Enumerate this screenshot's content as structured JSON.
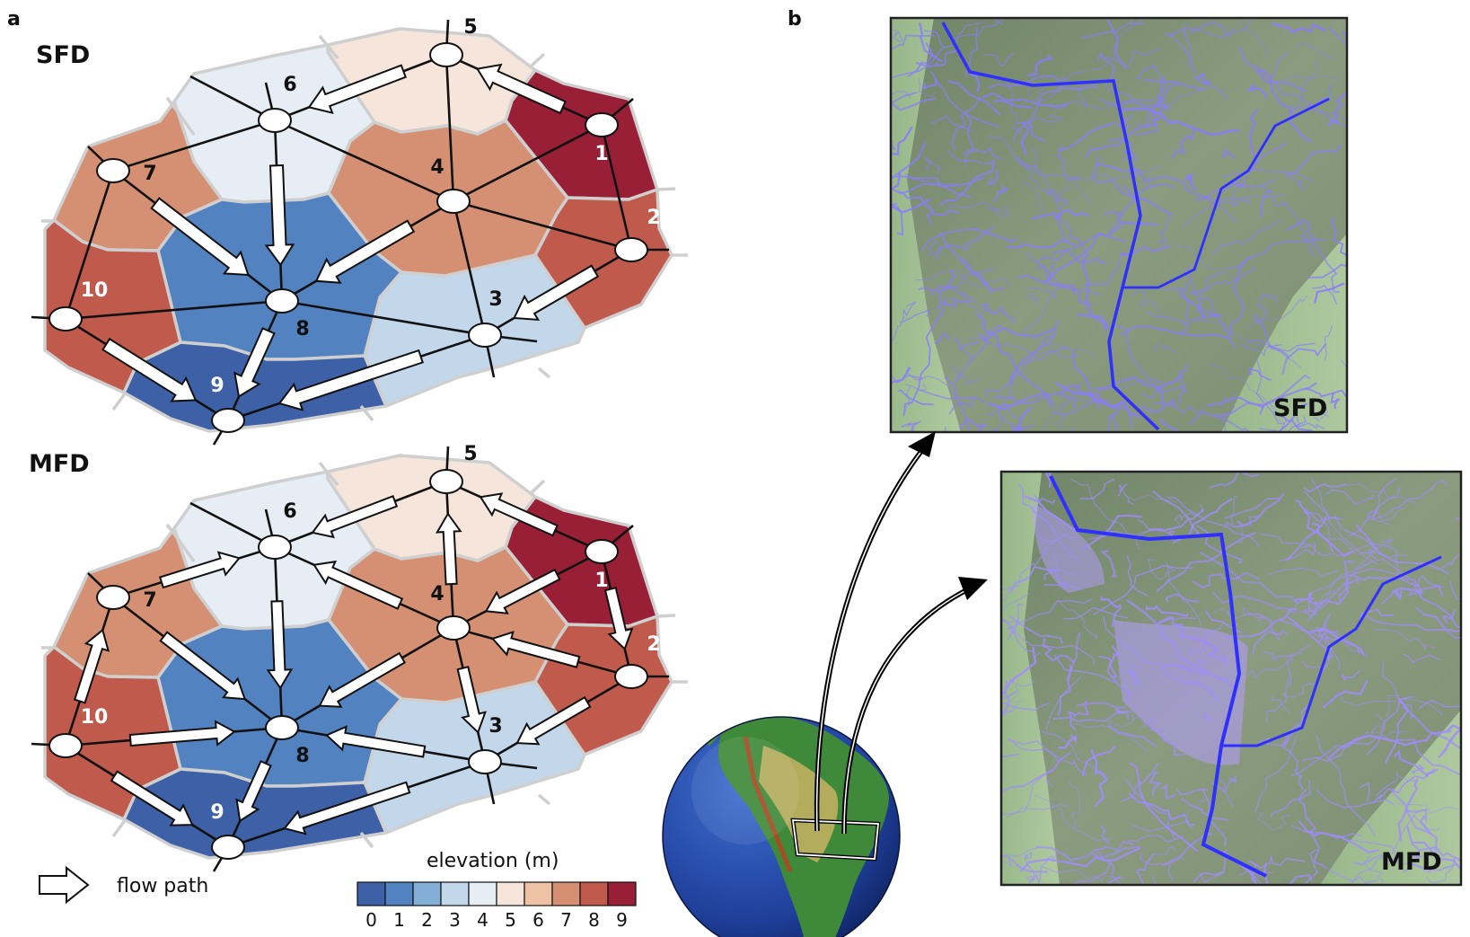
{
  "panel_labels": {
    "a": "a",
    "b": "b"
  },
  "diagrams": [
    {
      "id": "sfd",
      "title": "SFD"
    },
    {
      "id": "mfd",
      "title": "MFD"
    }
  ],
  "nodes": [
    {
      "id": "1",
      "label": "1",
      "elevation": 9
    },
    {
      "id": "2",
      "label": "2",
      "elevation": 8
    },
    {
      "id": "3",
      "label": "3",
      "elevation": 3
    },
    {
      "id": "4",
      "label": "4",
      "elevation": 7
    },
    {
      "id": "5",
      "label": "5",
      "elevation": 5
    },
    {
      "id": "6",
      "label": "6",
      "elevation": 4
    },
    {
      "id": "7",
      "label": "7",
      "elevation": 7
    },
    {
      "id": "8",
      "label": "8",
      "elevation": 1
    },
    {
      "id": "9",
      "label": "9",
      "elevation": 0
    },
    {
      "id": "10",
      "label": "10",
      "elevation": 8
    }
  ],
  "flows": {
    "sfd": [
      [
        "1",
        "5"
      ],
      [
        "5",
        "6"
      ],
      [
        "6",
        "8"
      ],
      [
        "7",
        "8"
      ],
      [
        "4",
        "8"
      ],
      [
        "2",
        "3"
      ],
      [
        "3",
        "9"
      ],
      [
        "8",
        "9"
      ],
      [
        "10",
        "9"
      ]
    ],
    "mfd": [
      [
        "1",
        "5"
      ],
      [
        "1",
        "4"
      ],
      [
        "1",
        "2"
      ],
      [
        "5",
        "6"
      ],
      [
        "6",
        "8"
      ],
      [
        "7",
        "6"
      ],
      [
        "7",
        "8"
      ],
      [
        "4",
        "6"
      ],
      [
        "4",
        "5"
      ],
      [
        "4",
        "8"
      ],
      [
        "4",
        "3"
      ],
      [
        "2",
        "4"
      ],
      [
        "2",
        "3"
      ],
      [
        "3",
        "8"
      ],
      [
        "3",
        "9"
      ],
      [
        "10",
        "7"
      ],
      [
        "10",
        "8"
      ],
      [
        "10",
        "9"
      ],
      [
        "8",
        "9"
      ]
    ]
  },
  "legend": {
    "flow_label": "flow path",
    "elevation_title": "elevation (m)",
    "ticks": [
      "0",
      "1",
      "2",
      "3",
      "4",
      "5",
      "6",
      "7",
      "8",
      "9"
    ],
    "colors": [
      "#3d60a6",
      "#5382c1",
      "#83aed6",
      "#c3d7ea",
      "#e6edf4",
      "#f5e5da",
      "#efc1a5",
      "#d59073",
      "#c05a4d",
      "#981f35"
    ]
  },
  "maps": [
    {
      "id": "sfd-map",
      "label": "SFD"
    },
    {
      "id": "mfd-map",
      "label": "MFD"
    }
  ]
}
